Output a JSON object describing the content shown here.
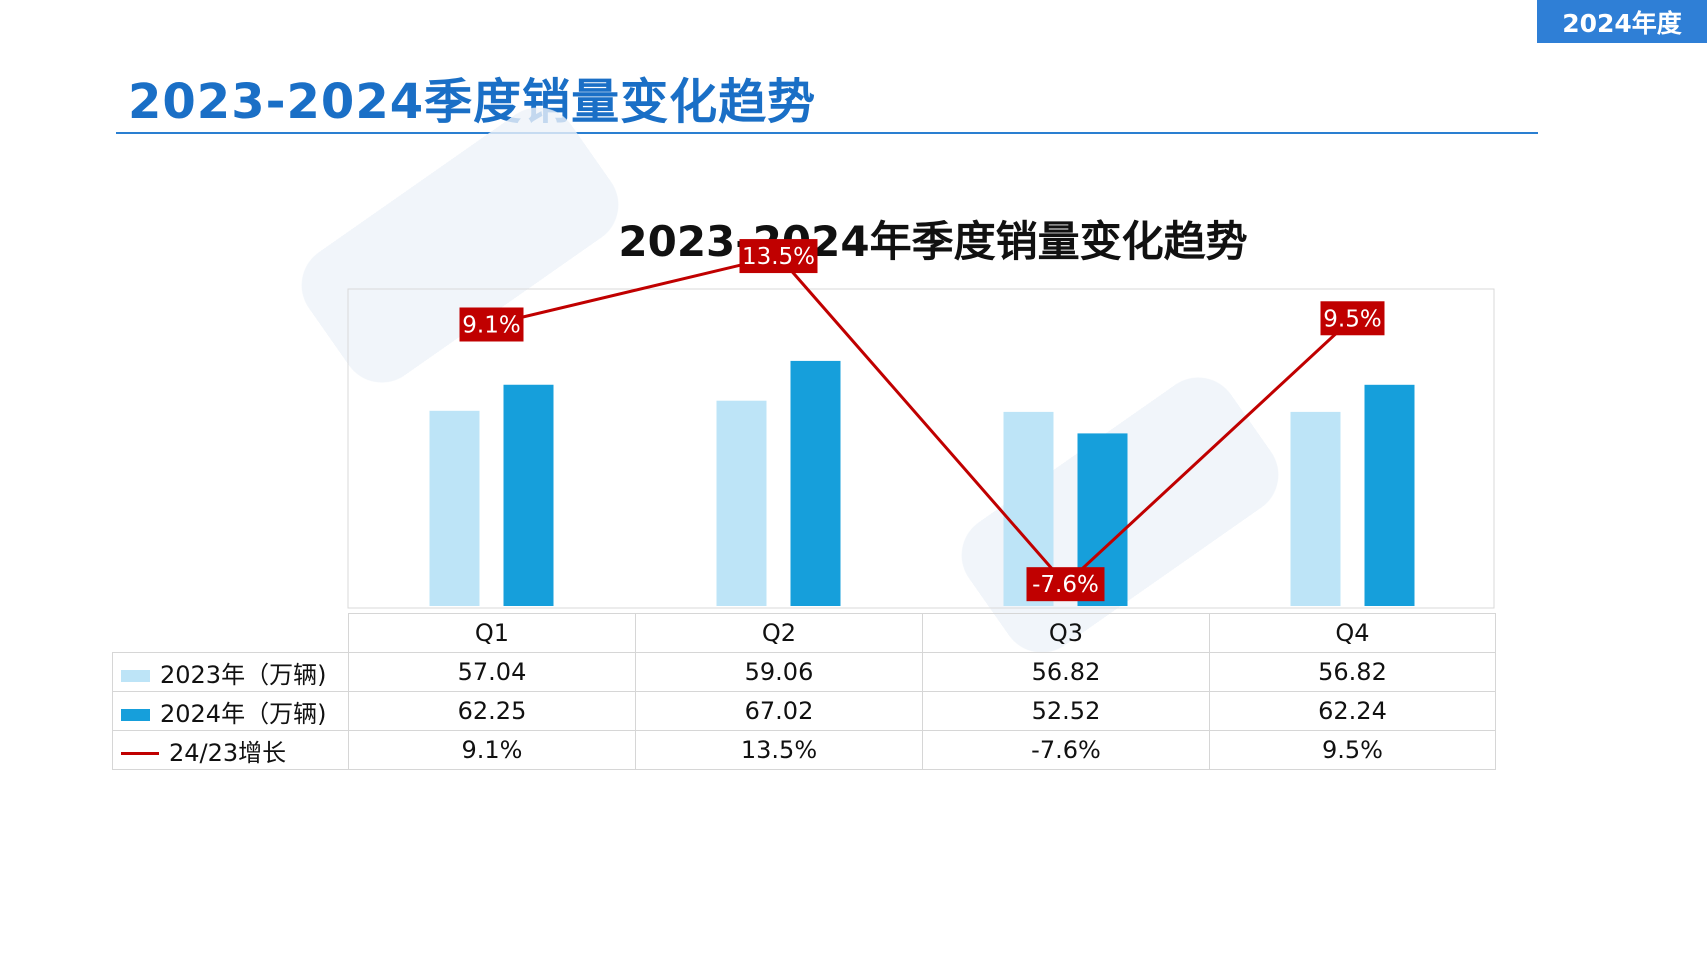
{
  "header": {
    "badge": "2024年度",
    "title": "2023-2024季度销量变化趋势"
  },
  "colors": {
    "accent": "#1a6fc6",
    "series_2023": "#bde4f7",
    "series_2024": "#169fdb",
    "growth_line": "#c00000"
  },
  "chart_data": {
    "type": "bar",
    "title": "2023-2024年季度销量变化趋势",
    "categories": [
      "Q1",
      "Q2",
      "Q3",
      "Q4"
    ],
    "series": [
      {
        "name": "2023年（万辆)",
        "values": [
          57.04,
          59.06,
          56.82,
          56.82
        ],
        "labels": [
          "57.04",
          "59.06",
          "56.82",
          "56.82"
        ]
      },
      {
        "name": "2024年（万辆)",
        "values": [
          62.25,
          67.02,
          52.52,
          62.24
        ],
        "labels": [
          "62.25",
          "67.02",
          "52.52",
          "62.24"
        ]
      }
    ],
    "line_series": {
      "name": "24/23增长",
      "type": "line",
      "values": [
        9.1,
        13.5,
        -7.6,
        9.5
      ],
      "labels": [
        "9.1%",
        "13.5%",
        "-7.6%",
        "9.5%"
      ]
    },
    "legend": "left-of-data-table",
    "grid": false
  }
}
